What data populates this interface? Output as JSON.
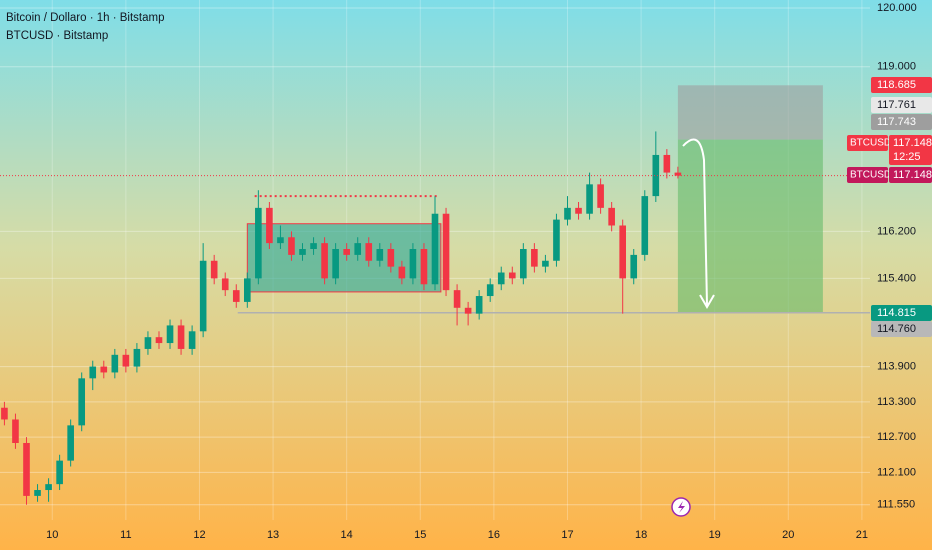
{
  "chart_data": {
    "type": "candlestick",
    "title": "Bitcoin / Dollaro · 1h · Bitstamp",
    "subtitle": "BTCUSD · Bitstamp",
    "x": [
      9.35,
      9.5,
      9.65,
      9.8,
      9.95,
      10.1,
      10.25,
      10.4,
      10.55,
      10.7,
      10.85,
      11.0,
      11.15,
      11.3,
      11.45,
      11.6,
      11.75,
      11.9,
      12.05,
      12.2,
      12.35,
      12.5,
      12.65,
      12.8,
      12.95,
      13.1,
      13.25,
      13.4,
      13.55,
      13.7,
      13.85,
      14.0,
      14.15,
      14.3,
      14.45,
      14.6,
      14.75,
      14.9,
      15.05,
      15.2,
      15.35,
      15.5,
      15.65,
      15.8,
      15.95,
      16.1,
      16.25,
      16.4,
      16.55,
      16.7,
      16.85,
      17.0,
      17.15,
      17.3,
      17.45,
      17.6,
      17.75,
      17.9,
      18.05,
      18.2,
      18.35,
      18.5
    ],
    "open": [
      113.2,
      113.0,
      112.6,
      111.7,
      111.8,
      111.9,
      112.3,
      112.9,
      113.7,
      113.9,
      113.8,
      114.1,
      113.9,
      114.2,
      114.4,
      114.3,
      114.6,
      114.2,
      114.5,
      115.7,
      115.4,
      115.2,
      115.0,
      115.4,
      116.6,
      116.0,
      116.1,
      115.8,
      115.9,
      116.0,
      115.4,
      115.9,
      115.8,
      116.0,
      115.7,
      115.9,
      115.6,
      115.4,
      115.9,
      115.3,
      116.5,
      115.2,
      114.9,
      114.8,
      115.1,
      115.3,
      115.5,
      115.4,
      115.9,
      115.6,
      115.7,
      116.4,
      116.6,
      116.5,
      117.0,
      116.6,
      116.3,
      115.4,
      115.8,
      116.8,
      117.5,
      117.2
    ],
    "high": [
      113.3,
      113.1,
      112.7,
      111.9,
      112.0,
      112.4,
      113.0,
      113.8,
      114.0,
      114.0,
      114.2,
      114.2,
      114.3,
      114.5,
      114.5,
      114.7,
      114.7,
      114.6,
      116.0,
      115.8,
      115.5,
      115.3,
      115.5,
      116.9,
      116.7,
      116.3,
      116.2,
      116.0,
      116.1,
      116.1,
      116.0,
      116.0,
      116.1,
      116.1,
      116.0,
      116.0,
      115.7,
      116.0,
      116.0,
      116.8,
      116.6,
      115.3,
      115.0,
      115.2,
      115.4,
      115.6,
      115.6,
      116.0,
      116.0,
      115.8,
      116.5,
      116.8,
      116.7,
      117.2,
      117.1,
      116.7,
      116.4,
      115.9,
      116.9,
      117.9,
      117.6,
      117.3
    ],
    "low": [
      112.9,
      112.5,
      111.55,
      111.6,
      111.6,
      111.8,
      112.2,
      112.8,
      113.5,
      113.7,
      113.7,
      113.8,
      113.8,
      114.1,
      114.2,
      114.2,
      114.1,
      114.1,
      114.4,
      115.3,
      115.1,
      114.9,
      114.9,
      115.3,
      115.9,
      115.9,
      115.7,
      115.7,
      115.8,
      115.3,
      115.3,
      115.7,
      115.7,
      115.6,
      115.6,
      115.5,
      115.3,
      115.3,
      115.2,
      115.2,
      115.1,
      114.6,
      114.6,
      114.7,
      115.0,
      115.2,
      115.3,
      115.3,
      115.5,
      115.5,
      115.6,
      116.3,
      116.4,
      116.4,
      116.5,
      116.2,
      114.8,
      115.3,
      115.7,
      116.7,
      117.1,
      117.1
    ],
    "close": [
      113.0,
      112.6,
      111.7,
      111.8,
      111.9,
      112.3,
      112.9,
      113.7,
      113.9,
      113.8,
      114.1,
      113.9,
      114.2,
      114.4,
      114.3,
      114.6,
      114.2,
      114.5,
      115.7,
      115.4,
      115.2,
      115.0,
      115.4,
      116.6,
      116.0,
      116.1,
      115.8,
      115.9,
      116.0,
      115.4,
      115.9,
      115.8,
      116.0,
      115.7,
      115.9,
      115.6,
      115.4,
      115.9,
      115.3,
      116.5,
      115.2,
      114.9,
      114.8,
      115.1,
      115.3,
      115.5,
      115.4,
      115.9,
      115.6,
      115.7,
      116.4,
      116.6,
      116.5,
      117.0,
      116.6,
      116.3,
      115.4,
      115.8,
      116.8,
      117.5,
      117.2,
      117.148
    ],
    "up_color": "#089981",
    "down_color": "#f23645",
    "xlim": [
      9.29,
      21.11
    ],
    "xticks": [
      10,
      11,
      12,
      13,
      14,
      15,
      16,
      17,
      18,
      19,
      20,
      21
    ],
    "ylim": [
      111.29,
      120.136
    ],
    "yticks": [
      {
        "value": 120,
        "label": "120.000"
      },
      {
        "value": 119,
        "label": "119.000"
      },
      {
        "value": 116.2,
        "label": "116.200"
      },
      {
        "value": 115.4,
        "label": "115.400"
      },
      {
        "value": 113.9,
        "label": "113.900"
      },
      {
        "value": 113.3,
        "label": "113.300"
      },
      {
        "value": 112.7,
        "label": "112.700"
      },
      {
        "value": 112.1,
        "label": "112.100"
      },
      {
        "value": 111.55,
        "label": "111.550"
      }
    ],
    "grid": true,
    "zones": [
      {
        "x": [
          12.65,
          15.28
        ],
        "y": [
          115.17,
          116.33
        ],
        "color": "#26a69a"
      },
      {
        "x": [
          18.5,
          20.47
        ],
        "y": [
          117.761,
          118.685
        ],
        "color": "#9e9e9e"
      },
      {
        "x": [
          18.5,
          20.47
        ],
        "y": [
          114.815,
          117.761
        ],
        "color": "#66bb6a"
      }
    ],
    "levels": [
      {
        "x": [
          12.75,
          15.25
        ],
        "y": 116.8,
        "color": "#f23645",
        "dash": true
      },
      {
        "x": [
          12.52,
          21.11
        ],
        "y": 114.815,
        "color": "#b0b0b0",
        "dash": false
      }
    ],
    "price_tags": [
      {
        "value": 118.685,
        "color": "#f23645"
      },
      {
        "value": 117.761,
        "color": "#e8e8e8"
      },
      {
        "value": 117.743,
        "color": "#9e9e9e"
      },
      {
        "value": 117.148,
        "color": "#f23645",
        "name": "BTCUSD",
        "countdown": "12:25"
      },
      {
        "value": 117.148,
        "color": "#c2185b",
        "name": "BTCUSD"
      },
      {
        "value": 114.815,
        "color": "#089981"
      },
      {
        "value": 114.76,
        "label": "114.760",
        "color": "#b8b8b8"
      }
    ]
  }
}
